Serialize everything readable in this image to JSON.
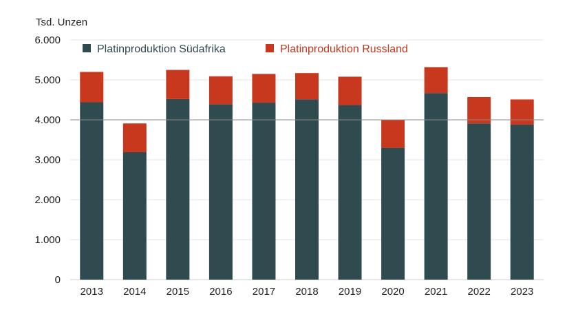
{
  "chart_data": {
    "type": "bar",
    "stacked": true,
    "y_unit_label": "Tsd. Unzen",
    "categories": [
      "2013",
      "2014",
      "2015",
      "2016",
      "2017",
      "2018",
      "2019",
      "2020",
      "2021",
      "2022",
      "2023"
    ],
    "series": [
      {
        "name": "Platinproduktion Südafrika",
        "color": "#2f4b4f",
        "values": [
          4440,
          3190,
          4520,
          4390,
          4430,
          4510,
          4370,
          3300,
          4670,
          3910,
          3880
        ]
      },
      {
        "name": "Platinproduktion Russland",
        "color": "#c8381f",
        "values": [
          760,
          720,
          730,
          700,
          720,
          660,
          710,
          700,
          650,
          660,
          630
        ]
      }
    ],
    "yticks": [
      0,
      1000,
      2000,
      3000,
      4000,
      5000,
      6000
    ],
    "ytick_labels": [
      "0",
      "1.000",
      "2.000",
      "3.000",
      "4.000",
      "5.000",
      "6.000"
    ],
    "ylim": [
      0,
      6000
    ],
    "reference_line": 4000,
    "grid": true,
    "legend_position": "top"
  }
}
